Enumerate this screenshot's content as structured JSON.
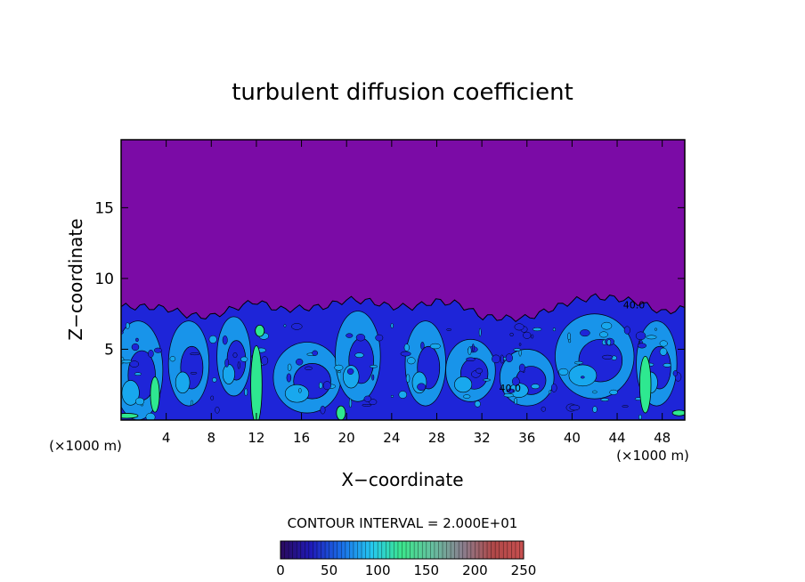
{
  "chart_data": {
    "type": "heatmap",
    "title": "turbulent diffusion coefficient",
    "xlabel": "X−coordinate",
    "ylabel": "Z−coordinate",
    "x_unit_left": "(×1000 m)",
    "x_unit_right": "(×1000 m)",
    "xlim": [
      0,
      50
    ],
    "ylim": [
      0,
      19.8
    ],
    "xticks": [
      4,
      8,
      12,
      16,
      20,
      24,
      28,
      32,
      36,
      40,
      44,
      48
    ],
    "yticks": [
      5,
      10,
      15
    ],
    "contour_interval_text": "CONTOUR INTERVAL = 2.000E+01",
    "contour_labels": [
      "40.0",
      "40.0"
    ],
    "background_value": 0,
    "turbulent_layer_top_profile": {
      "x": [
        0,
        2,
        4,
        6,
        8,
        10,
        12,
        14,
        16,
        18,
        20,
        22,
        24,
        26,
        28,
        30,
        32,
        34,
        36,
        38,
        40,
        42,
        44,
        46,
        48,
        50
      ],
      "z": [
        8.0,
        8.0,
        7.9,
        7.4,
        7.3,
        7.9,
        8.4,
        7.8,
        7.9,
        8.0,
        8.5,
        8.4,
        8.0,
        8.0,
        8.4,
        8.2,
        7.3,
        7.2,
        7.2,
        7.8,
        8.4,
        8.7,
        8.6,
        8.3,
        7.6,
        7.9
      ]
    },
    "colorbar": {
      "ticks": [
        0,
        50,
        100,
        150,
        200,
        250
      ],
      "range": [
        0,
        250
      ],
      "colors": [
        "#2a0a5c",
        "#1f1ab8",
        "#1a6ee8",
        "#25c8f0",
        "#3ce68c",
        "#66c0a0",
        "#8a7e8e",
        "#b04848",
        "#c85050"
      ]
    },
    "colors": {
      "background": "#7b0ba6",
      "low": "#1e25d8",
      "mid": "#18a8ee",
      "high": "#2ee890"
    }
  }
}
